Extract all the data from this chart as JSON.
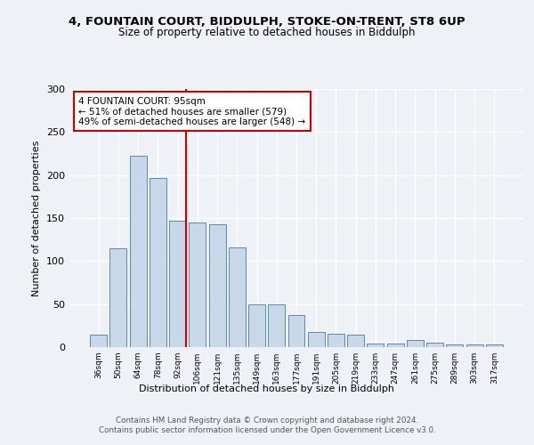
{
  "title1": "4, FOUNTAIN COURT, BIDDULPH, STOKE-ON-TRENT, ST8 6UP",
  "title2": "Size of property relative to detached houses in Biddulph",
  "xlabel": "Distribution of detached houses by size in Biddulph",
  "ylabel": "Number of detached properties",
  "categories": [
    "36sqm",
    "50sqm",
    "64sqm",
    "78sqm",
    "92sqm",
    "106sqm",
    "121sqm",
    "135sqm",
    "149sqm",
    "163sqm",
    "177sqm",
    "191sqm",
    "205sqm",
    "219sqm",
    "233sqm",
    "247sqm",
    "261sqm",
    "275sqm",
    "289sqm",
    "303sqm",
    "317sqm"
  ],
  "values": [
    15,
    115,
    222,
    197,
    147,
    145,
    143,
    116,
    50,
    50,
    37,
    18,
    16,
    15,
    4,
    4,
    8,
    5,
    3,
    3,
    3
  ],
  "bar_color": "#c8d8e8",
  "bar_edge_color": "#5a8ab0",
  "vline_index": 4,
  "annotation_line1": "4 FOUNTAIN COURT: 95sqm",
  "annotation_line2": "← 51% of detached houses are smaller (579)",
  "annotation_line3": "49% of semi-detached houses are larger (548) →",
  "annotation_box_color": "#ffffff",
  "annotation_box_edge_color": "#cc0000",
  "vline_color": "#cc0000",
  "ylim": [
    0,
    300
  ],
  "yticks": [
    0,
    50,
    100,
    150,
    200,
    250,
    300
  ],
  "footer_text": "Contains HM Land Registry data © Crown copyright and database right 2024.\nContains public sector information licensed under the Open Government Licence v3.0.",
  "background_color": "#eef2f7",
  "plot_bg_color": "#eef2f7"
}
